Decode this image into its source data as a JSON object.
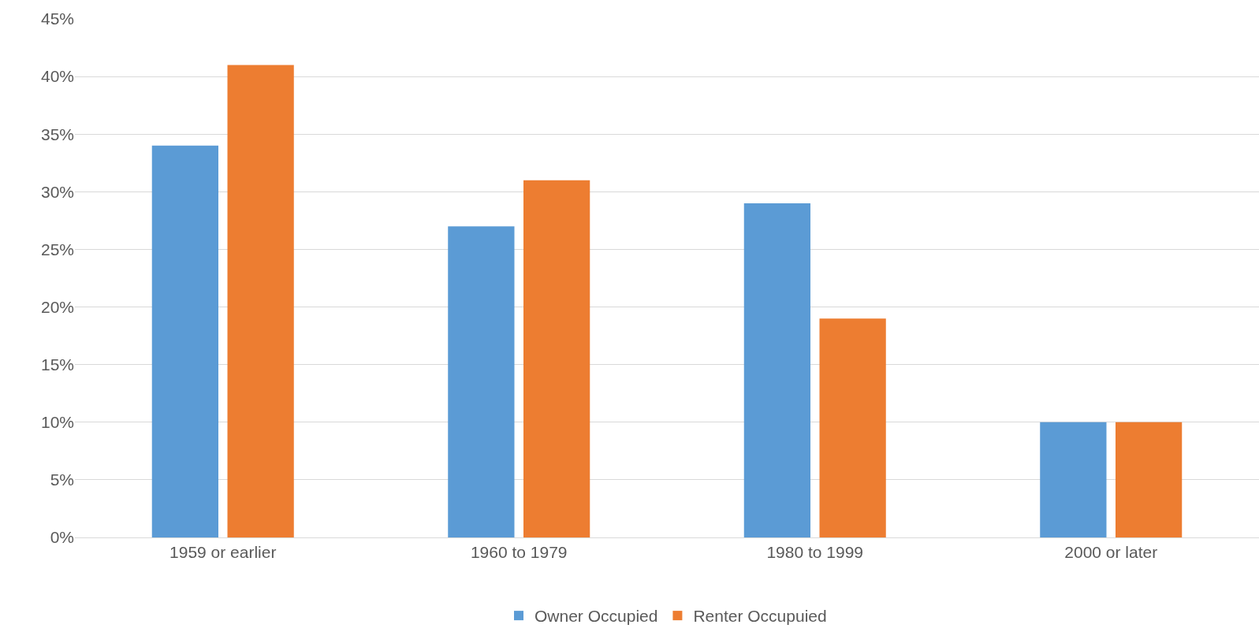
{
  "chart_data": {
    "type": "bar",
    "categories": [
      "1959 or earlier",
      "1960 to 1979",
      "1980 to 1999",
      "2000 or later"
    ],
    "series": [
      {
        "name": "Owner Occupied",
        "color": "#5b9bd5",
        "values": [
          34,
          27,
          29,
          10
        ]
      },
      {
        "name": "Renter Occupuied",
        "color": "#ed7d31",
        "values": [
          41,
          31,
          19,
          10
        ]
      }
    ],
    "ylim": [
      0,
      45
    ],
    "yticks": [
      {
        "value": 0,
        "label": "0%"
      },
      {
        "value": 5,
        "label": "5%"
      },
      {
        "value": 10,
        "label": "10%"
      },
      {
        "value": 15,
        "label": "15%"
      },
      {
        "value": 20,
        "label": "20%"
      },
      {
        "value": 25,
        "label": "25%"
      },
      {
        "value": 30,
        "label": "30%"
      },
      {
        "value": 35,
        "label": "35%"
      },
      {
        "value": 40,
        "label": "40%"
      },
      {
        "value": 45,
        "label": "45%"
      }
    ],
    "grid": "y",
    "legend": "bottom"
  }
}
